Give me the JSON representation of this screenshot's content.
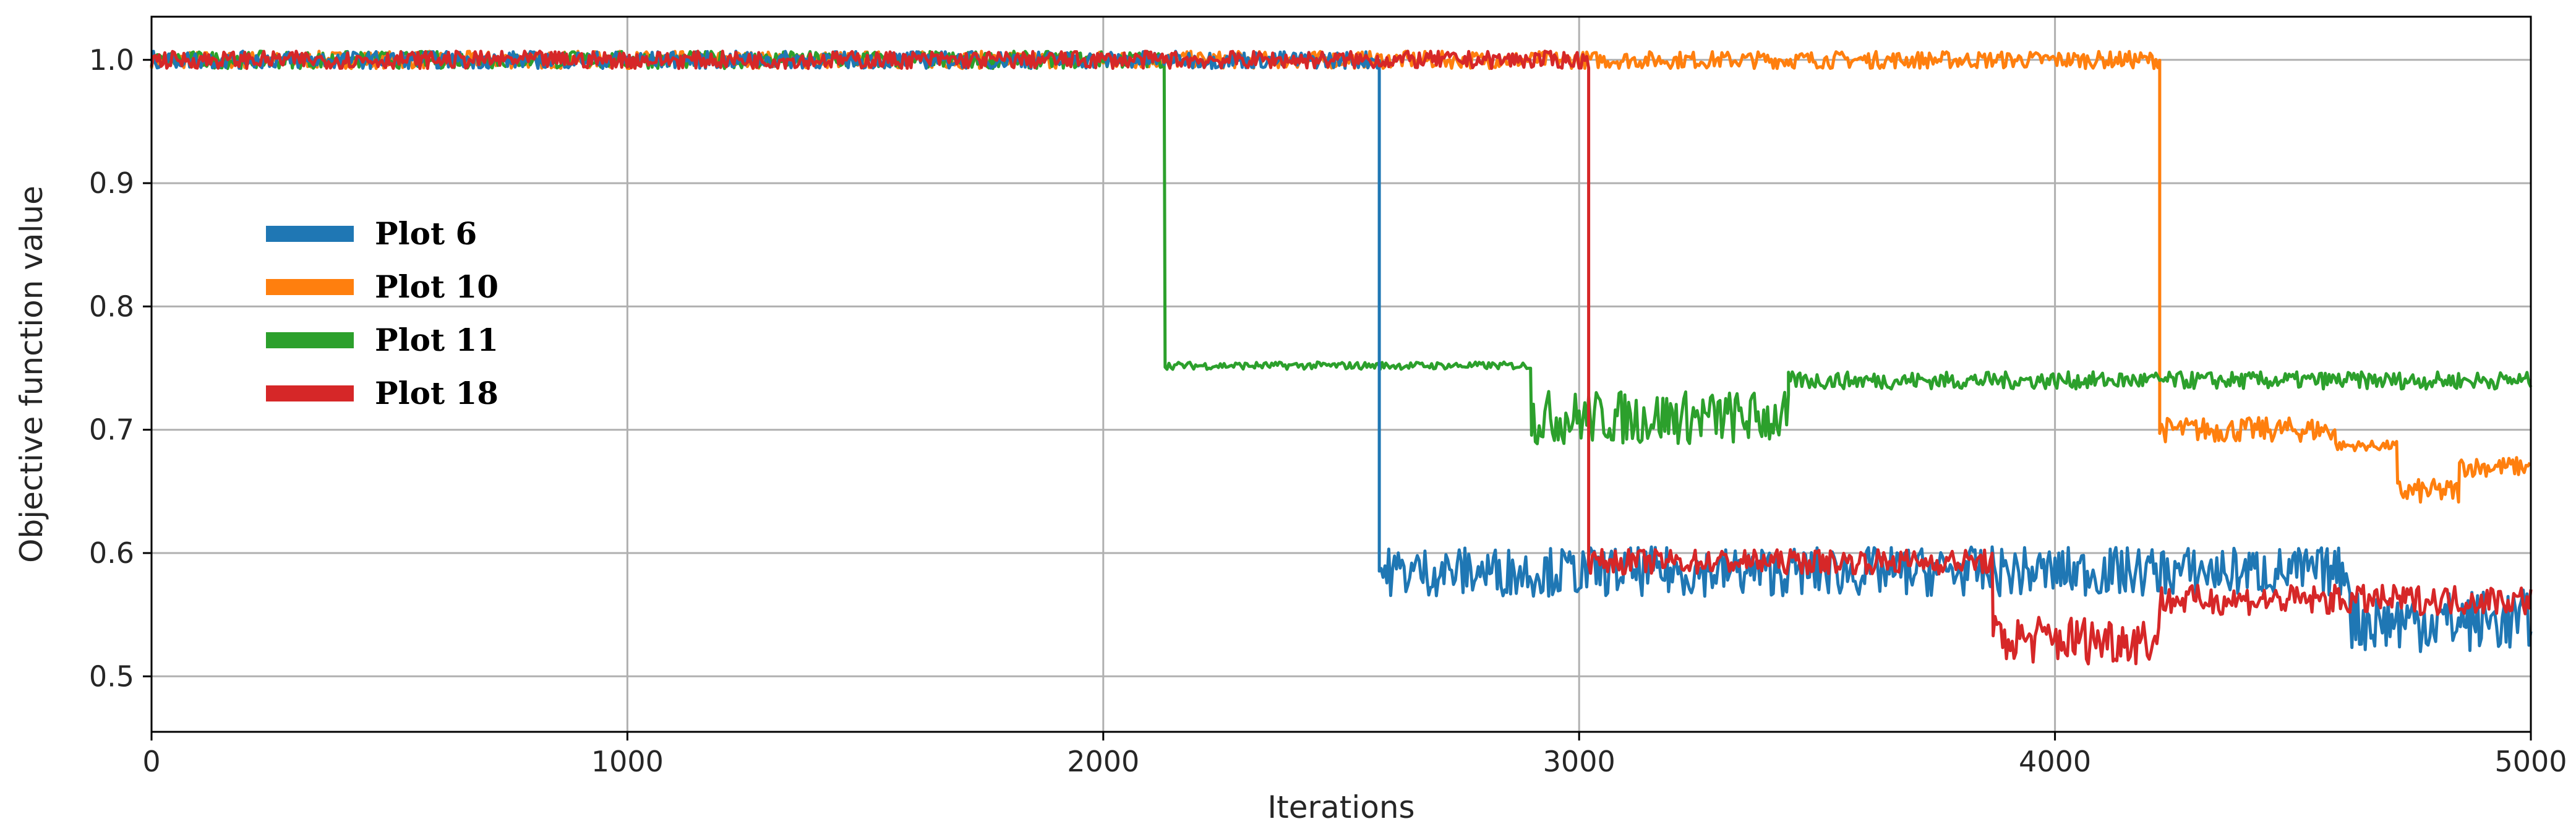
{
  "chart_data": {
    "type": "line",
    "title": "",
    "xlabel": "Iterations",
    "ylabel": "Objective function value",
    "xlim": [
      0,
      5000
    ],
    "ylim": [
      0.455,
      1.035
    ],
    "xticks": [
      0,
      1000,
      2000,
      3000,
      4000,
      5000
    ],
    "yticks": [
      0.5,
      0.6,
      0.7,
      0.8,
      0.9,
      1.0
    ],
    "xtick_labels": [
      "0",
      "1000",
      "2000",
      "3000",
      "4000",
      "5000"
    ],
    "ytick_labels": [
      "0.5",
      "0.6",
      "0.7",
      "0.8",
      "0.9",
      "1.0"
    ],
    "grid": true,
    "legend_position": "upper-left",
    "series": [
      {
        "name": "Plot 6",
        "color": "#1f77b4",
        "segments": [
          {
            "x_start": 0,
            "x_end": 2580,
            "center": 1.0,
            "noise": 0.007
          },
          {
            "x_start": 2580,
            "x_end": 4620,
            "center": 0.585,
            "noise": 0.02
          },
          {
            "x_start": 4620,
            "x_end": 5000,
            "center": 0.545,
            "noise": 0.025
          }
        ]
      },
      {
        "name": "Plot 10",
        "color": "#ff7f0e",
        "segments": [
          {
            "x_start": 0,
            "x_end": 4220,
            "center": 1.0,
            "noise": 0.007
          },
          {
            "x_start": 4220,
            "x_end": 4590,
            "center": 0.7,
            "noise": 0.01
          },
          {
            "x_start": 4590,
            "x_end": 4720,
            "center": 0.687,
            "noise": 0.004
          },
          {
            "x_start": 4720,
            "x_end": 4850,
            "center": 0.65,
            "noise": 0.01
          },
          {
            "x_start": 4850,
            "x_end": 5000,
            "center": 0.67,
            "noise": 0.008
          }
        ]
      },
      {
        "name": "Plot 11",
        "color": "#2ca02c",
        "segments": [
          {
            "x_start": 0,
            "x_end": 2130,
            "center": 1.0,
            "noise": 0.007
          },
          {
            "x_start": 2130,
            "x_end": 2900,
            "center": 0.752,
            "noise": 0.003
          },
          {
            "x_start": 2900,
            "x_end": 3440,
            "center": 0.71,
            "noise": 0.022
          },
          {
            "x_start": 3440,
            "x_end": 5000,
            "center": 0.74,
            "noise": 0.007
          }
        ]
      },
      {
        "name": "Plot 18",
        "color": "#d62728",
        "segments": [
          {
            "x_start": 0,
            "x_end": 3020,
            "center": 1.0,
            "noise": 0.007
          },
          {
            "x_start": 3020,
            "x_end": 3870,
            "center": 0.593,
            "noise": 0.01
          },
          {
            "x_start": 3870,
            "x_end": 4220,
            "center": 0.53,
            "noise": 0.02
          },
          {
            "x_start": 4220,
            "x_end": 5000,
            "center": 0.562,
            "noise": 0.012
          }
        ]
      }
    ]
  }
}
